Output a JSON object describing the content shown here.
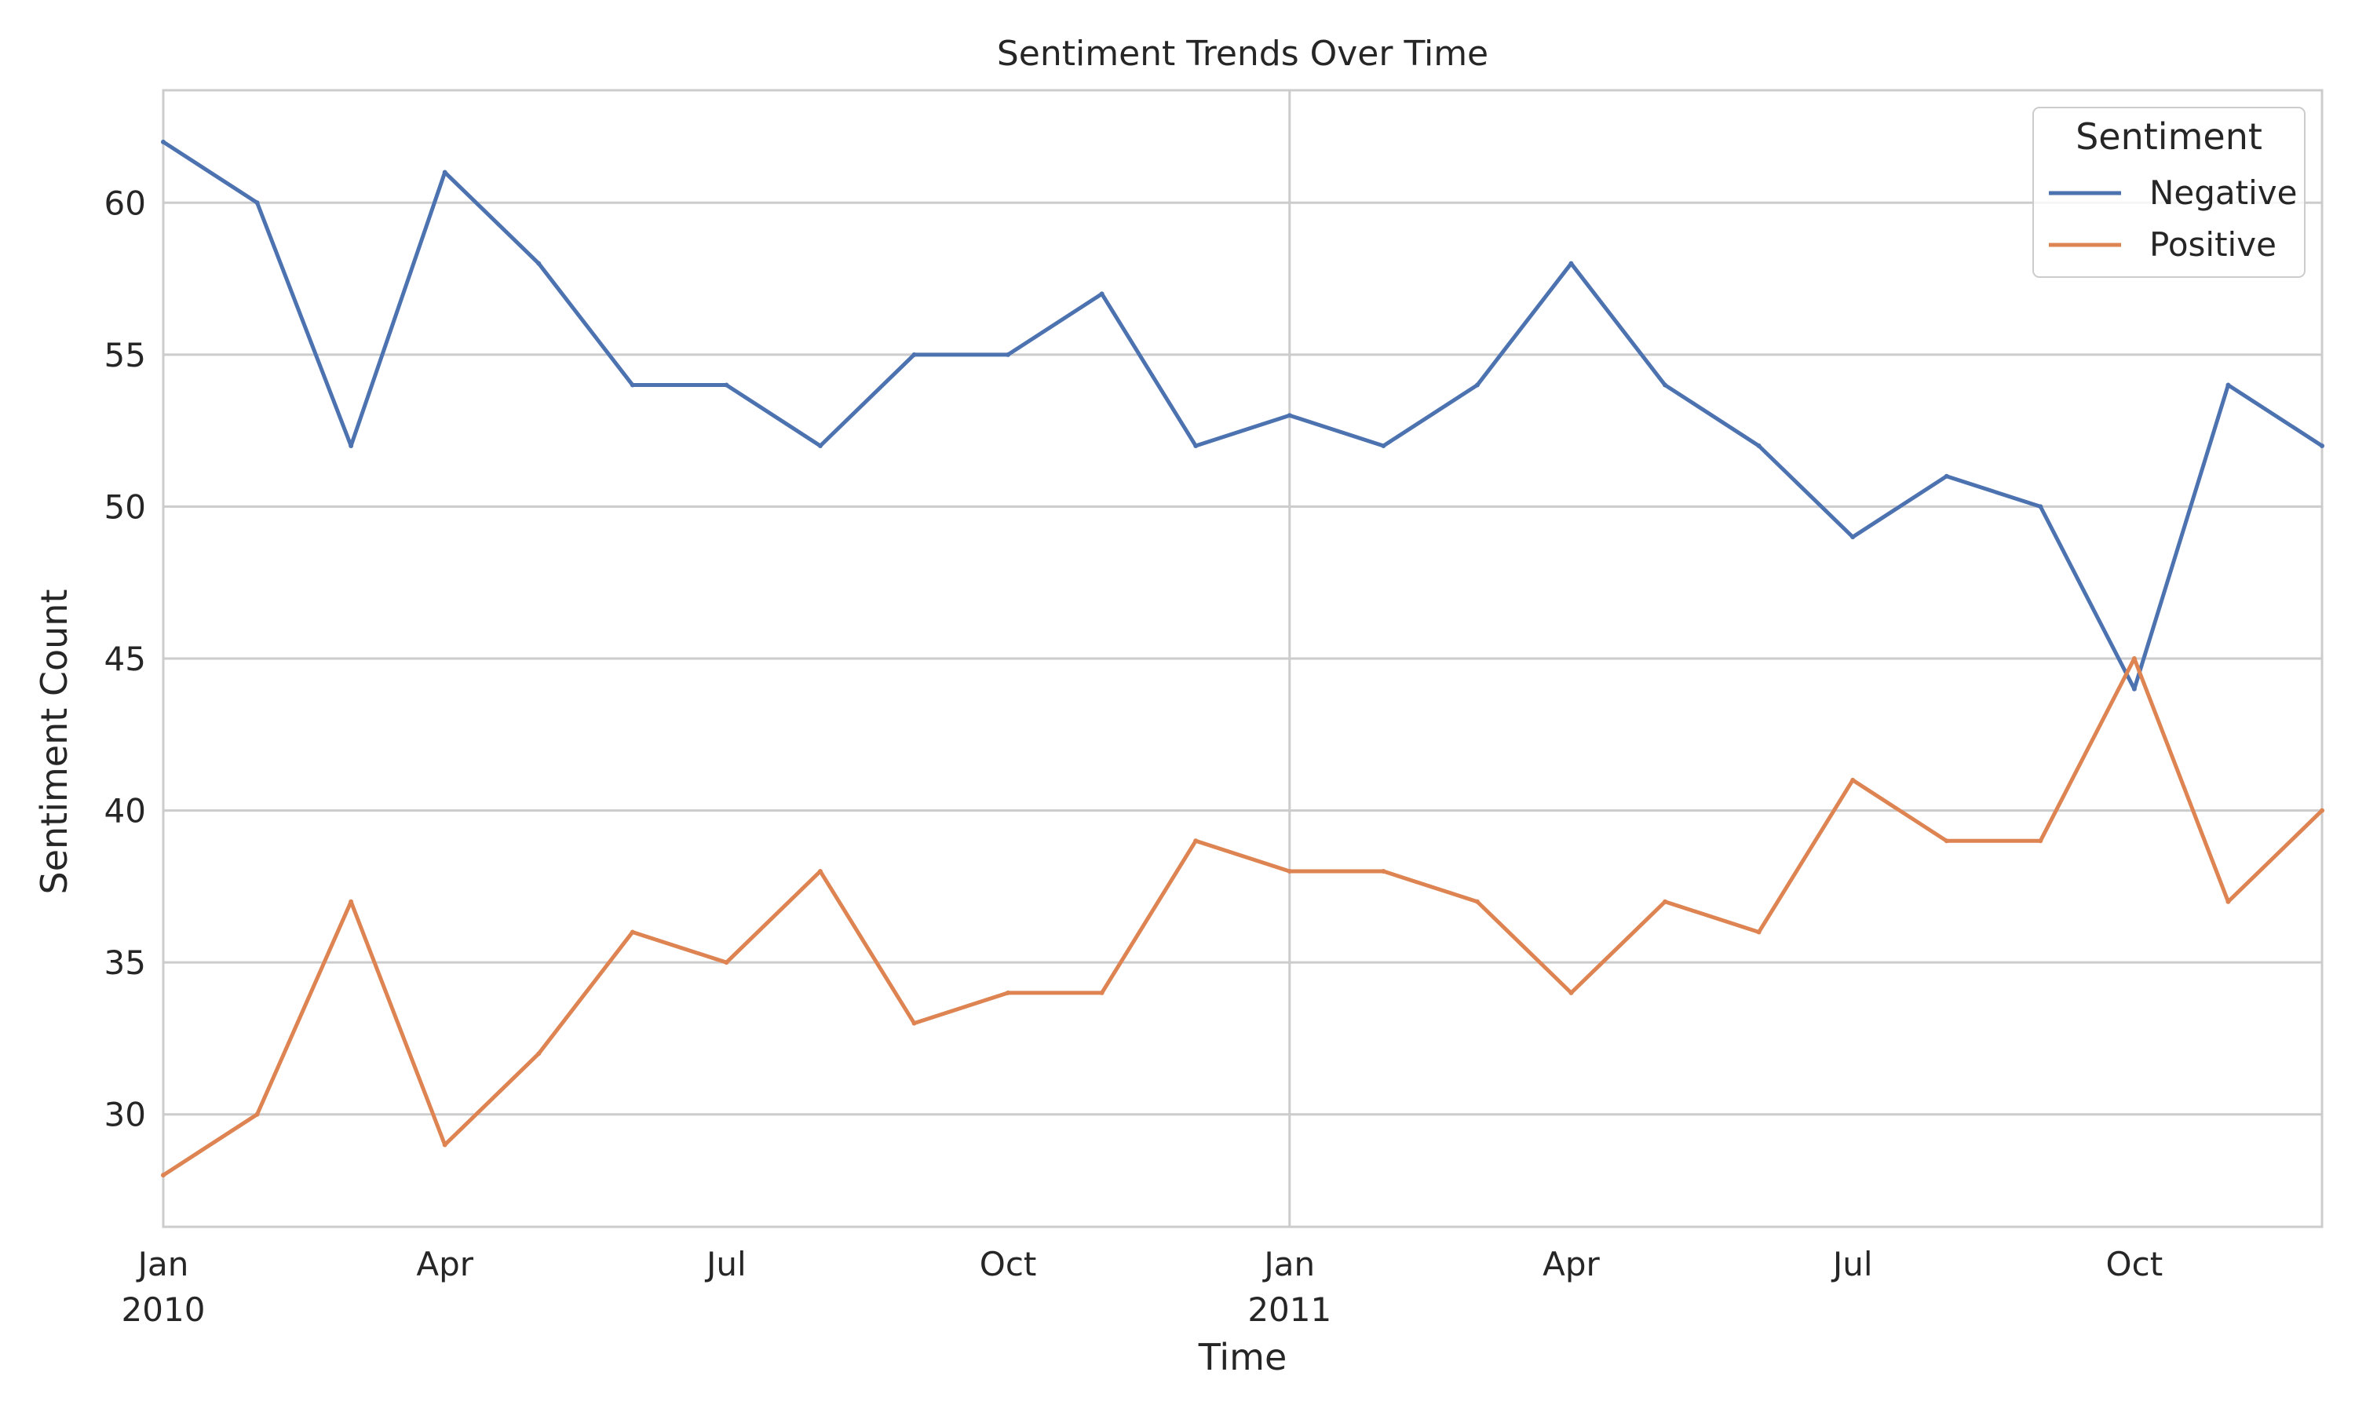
{
  "chart_data": {
    "type": "line",
    "title": "Sentiment Trends Over Time",
    "xlabel": "Time",
    "ylabel": "Sentiment Count",
    "x": [
      "2010-01",
      "2010-02",
      "2010-03",
      "2010-04",
      "2010-05",
      "2010-06",
      "2010-07",
      "2010-08",
      "2010-09",
      "2010-10",
      "2010-11",
      "2010-12",
      "2011-01",
      "2011-02",
      "2011-03",
      "2011-04",
      "2011-05",
      "2011-06",
      "2011-07",
      "2011-08",
      "2011-09",
      "2011-10",
      "2011-11",
      "2011-12"
    ],
    "series": [
      {
        "name": "Negative",
        "color": "#4c72b0",
        "values": [
          62,
          60,
          52,
          61,
          58,
          54,
          54,
          52,
          55,
          55,
          57,
          52,
          53,
          52,
          54,
          58,
          54,
          52,
          49,
          51,
          50,
          44,
          54,
          52
        ]
      },
      {
        "name": "Positive",
        "color": "#dd8452",
        "values": [
          28,
          30,
          37,
          29,
          32,
          36,
          35,
          38,
          33,
          34,
          34,
          39,
          38,
          38,
          37,
          34,
          37,
          36,
          41,
          39,
          39,
          45,
          37,
          40
        ]
      }
    ],
    "ylim": [
      26.3,
      63.7
    ],
    "yticks": [
      30,
      35,
      40,
      45,
      50,
      55,
      60
    ],
    "xticks": [
      {
        "x": "2010-01",
        "label": "Jan",
        "sublabel": "2010",
        "major": true
      },
      {
        "x": "2010-04",
        "label": "Apr",
        "sublabel": "",
        "major": false
      },
      {
        "x": "2010-07",
        "label": "Jul",
        "sublabel": "",
        "major": false
      },
      {
        "x": "2010-10",
        "label": "Oct",
        "sublabel": "",
        "major": false
      },
      {
        "x": "2011-01",
        "label": "Jan",
        "sublabel": "2011",
        "major": true
      },
      {
        "x": "2011-04",
        "label": "Apr",
        "sublabel": "",
        "major": false
      },
      {
        "x": "2011-07",
        "label": "Jul",
        "sublabel": "",
        "major": false
      },
      {
        "x": "2011-10",
        "label": "Oct",
        "sublabel": "",
        "major": false
      }
    ],
    "grid": true,
    "legend": {
      "title": "Sentiment",
      "placement": "top-right"
    }
  }
}
